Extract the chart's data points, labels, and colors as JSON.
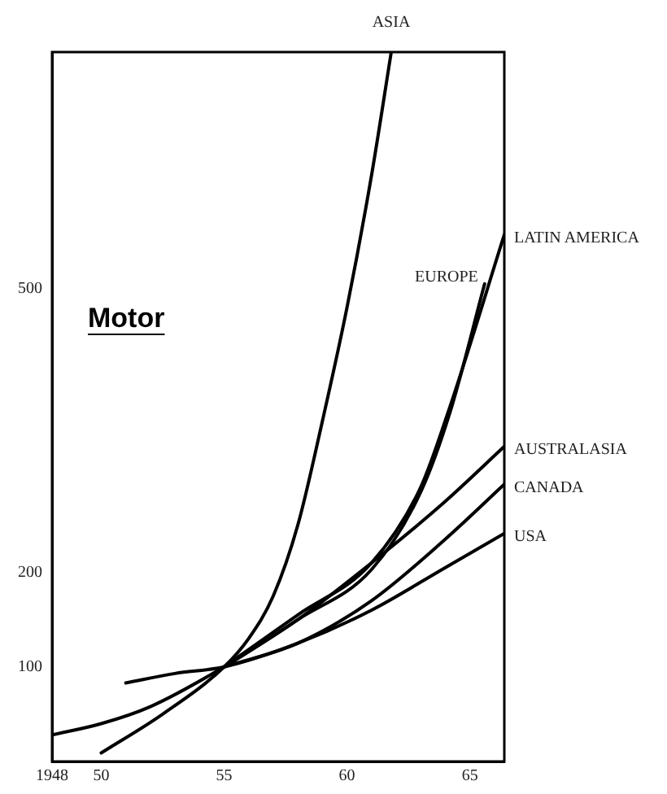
{
  "chart_data": {
    "type": "line",
    "title": "Motor",
    "xlim": [
      1948,
      1966.4
    ],
    "xticks": [
      {
        "value": 1948,
        "label": "1948"
      },
      {
        "value": 1950,
        "label": "50"
      },
      {
        "value": 1955,
        "label": "55"
      },
      {
        "value": 1960,
        "label": "60"
      },
      {
        "value": 1965,
        "label": "65"
      }
    ],
    "ylim": [
      0,
      750
    ],
    "yticks": [
      100,
      200,
      500
    ],
    "grid": false,
    "legend": false,
    "marker": "none",
    "line_style": "solid",
    "series": [
      {
        "name": "ASIA",
        "color": "#000000",
        "x": [
          1950,
          1952.5,
          1955,
          1956,
          1957,
          1958,
          1959,
          1960,
          1961,
          1961.8
        ],
        "values": [
          9,
          50,
          100,
          130,
          175,
          250,
          360,
          480,
          620,
          750
        ]
      },
      {
        "name": "LATIN AMERICA",
        "color": "#000000",
        "x": [
          1955,
          1958,
          1961,
          1963,
          1964.2,
          1966.4
        ],
        "values": [
          100,
          155,
          210,
          290,
          376,
          557
        ]
      },
      {
        "name": "EUROPE",
        "color": "#000000",
        "x": [
          1948,
          1950,
          1952,
          1955,
          1958,
          1961,
          1963,
          1964.2,
          1965.6
        ],
        "values": [
          28,
          40,
          58,
          100,
          150,
          203,
          285,
          370,
          505
        ]
      },
      {
        "name": "AUSTRALASIA",
        "color": "#000000",
        "x": [
          1955,
          1958,
          1961,
          1964,
          1966.4
        ],
        "values": [
          100,
          150,
          210,
          275,
          333
        ]
      },
      {
        "name": "CANADA",
        "color": "#000000",
        "x": [
          1955,
          1958,
          1961,
          1964,
          1966.4
        ],
        "values": [
          100,
          125,
          170,
          235,
          293
        ]
      },
      {
        "name": "USA",
        "color": "#000000",
        "x": [
          1951,
          1953,
          1955,
          1958,
          1961,
          1964,
          1966.4
        ],
        "values": [
          83,
          93,
          100,
          125,
          160,
          205,
          241
        ]
      }
    ]
  }
}
